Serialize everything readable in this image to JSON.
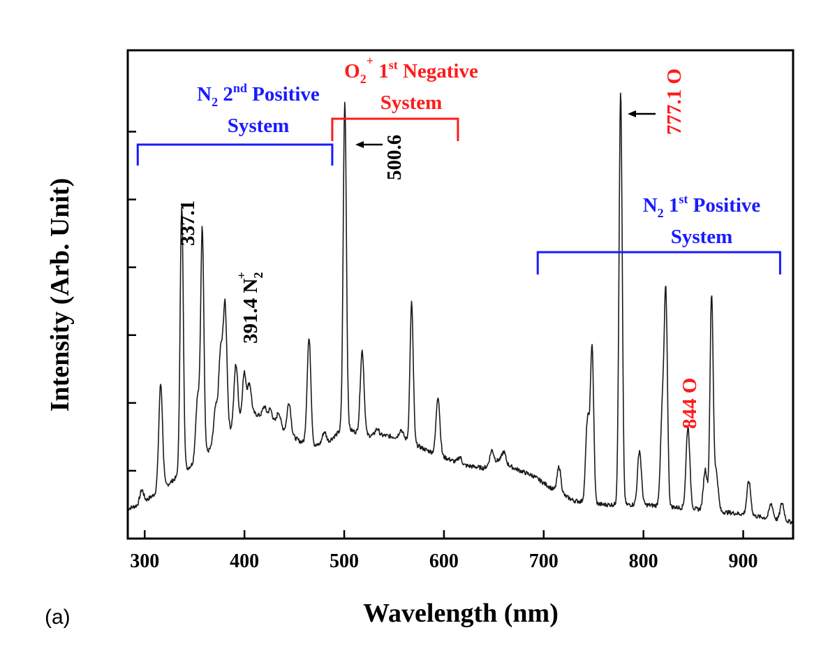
{
  "panel_label": "(a)",
  "colors": {
    "blue": "#1a1aff",
    "red": "#ff1a1a",
    "black": "#000000",
    "trace": "#1a1a1a"
  },
  "chart_data": {
    "type": "line",
    "xlabel": "Wavelength (nm)",
    "ylabel": "Intensity (Arb. Unit)",
    "xlim": [
      283,
      950
    ],
    "ylim": [
      0,
      360
    ],
    "xticks": [
      "300",
      "400",
      "500",
      "600",
      "700",
      "800",
      "900"
    ],
    "xtick_values": [
      300,
      400,
      500,
      600,
      700,
      800,
      900
    ],
    "ytick_values": [
      50,
      100,
      150,
      200,
      250,
      300
    ],
    "baseline": [
      [
        283,
        22
      ],
      [
        295,
        25
      ],
      [
        305,
        30
      ],
      [
        320,
        38
      ],
      [
        340,
        50
      ],
      [
        360,
        62
      ],
      [
        380,
        76
      ],
      [
        395,
        86
      ],
      [
        410,
        92
      ],
      [
        425,
        88
      ],
      [
        440,
        80
      ],
      [
        455,
        72
      ],
      [
        470,
        68
      ],
      [
        485,
        72
      ],
      [
        500,
        82
      ],
      [
        520,
        76
      ],
      [
        540,
        76
      ],
      [
        560,
        74
      ],
      [
        580,
        66
      ],
      [
        600,
        60
      ],
      [
        620,
        54
      ],
      [
        640,
        52
      ],
      [
        655,
        58
      ],
      [
        670,
        52
      ],
      [
        690,
        46
      ],
      [
        710,
        36
      ],
      [
        730,
        28
      ],
      [
        760,
        25
      ],
      [
        800,
        25
      ],
      [
        850,
        22
      ],
      [
        900,
        18
      ],
      [
        950,
        12
      ]
    ],
    "peaks": [
      [
        297,
        10
      ],
      [
        316,
        78
      ],
      [
        337.1,
        196
      ],
      [
        353,
        46
      ],
      [
        357.7,
        167
      ],
      [
        371,
        26
      ],
      [
        376,
        62
      ],
      [
        380.5,
        95
      ],
      [
        391.4,
        45
      ],
      [
        399.8,
        34
      ],
      [
        405,
        24
      ],
      [
        420,
        8
      ],
      [
        426,
        8
      ],
      [
        434.3,
        10
      ],
      [
        444.7,
        23
      ],
      [
        464.7,
        78
      ],
      [
        480,
        8
      ],
      [
        500.6,
        240
      ],
      [
        518,
        62
      ],
      [
        533,
        5
      ],
      [
        557,
        6
      ],
      [
        567.6,
        103
      ],
      [
        594,
        43
      ],
      [
        616,
        5
      ],
      [
        648,
        10
      ],
      [
        660,
        8
      ],
      [
        715.4,
        19
      ],
      [
        744,
        62
      ],
      [
        748.5,
        114
      ],
      [
        777.1,
        305
      ],
      [
        796,
        40
      ],
      [
        819,
        70
      ],
      [
        822.5,
        148
      ],
      [
        844.6,
        60
      ],
      [
        862,
        30
      ],
      [
        868.3,
        158
      ],
      [
        873,
        28
      ],
      [
        905.6,
        25
      ],
      [
        928,
        11
      ],
      [
        939,
        13
      ]
    ],
    "annotations": [
      {
        "text": "337.1",
        "x": 337.1,
        "color": "black",
        "rotated": true
      },
      {
        "text": "391.4 N",
        "sub": "2",
        "sup": "+",
        "x": 391.4,
        "color": "black",
        "rotated": true
      },
      {
        "text": "500.6",
        "x": 500.6,
        "color": "black",
        "rotated": true,
        "arrow": true
      },
      {
        "text": "777.1 O",
        "x": 777.1,
        "color": "red",
        "rotated": true,
        "arrow": true
      },
      {
        "text": "844 O",
        "x": 844.6,
        "color": "red",
        "rotated": true
      }
    ],
    "bands": [
      {
        "name": "N2 2nd Positive System",
        "x_range": [
          293,
          488
        ],
        "color": "blue",
        "label_lines": [
          {
            "main": "N",
            "sub": "2",
            "rest": " 2",
            "sup": "nd",
            "tail": " Positive"
          },
          {
            "main": "System"
          }
        ]
      },
      {
        "name": "O2+ 1st Negative System",
        "x_range": [
          488,
          614
        ],
        "color": "red",
        "label_lines": [
          {
            "main": "O",
            "sub": "2",
            "sup": "+",
            "rest": " 1",
            "sup2": "st",
            "tail": " Negative"
          },
          {
            "main": "System"
          }
        ]
      },
      {
        "name": "N2 1st Positive System",
        "x_range": [
          694,
          937
        ],
        "color": "blue",
        "label_lines": [
          {
            "main": "N",
            "sub": "2",
            "rest": " 1",
            "sup": "st",
            "tail": " Positive"
          },
          {
            "main": "System"
          }
        ]
      }
    ]
  }
}
